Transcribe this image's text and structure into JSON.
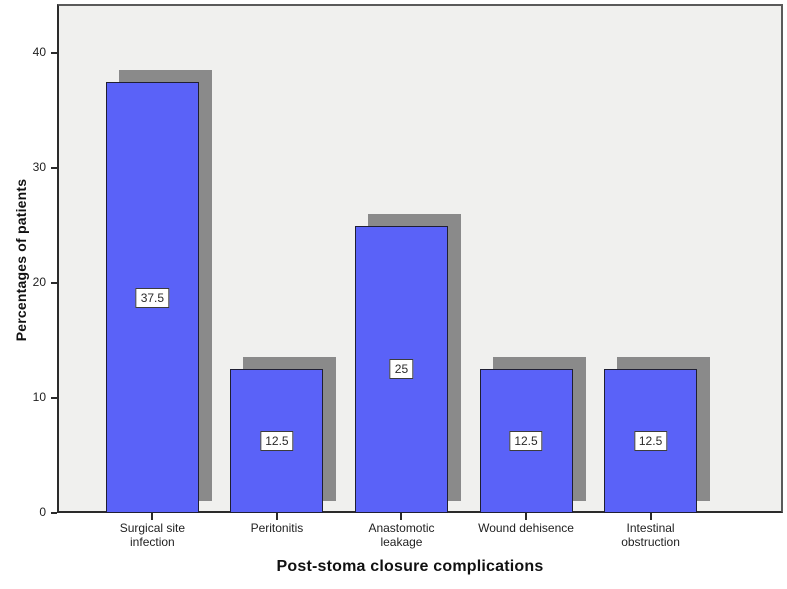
{
  "chart_data": {
    "type": "bar",
    "title": "",
    "xlabel": "Post-stoma closure complications",
    "ylabel": "Percentages of patients",
    "categories": [
      "Surgical site\ninfection",
      "Peritonitis",
      "Anastomotic\nleakage",
      "Wound dehisence",
      "Intestinal\nobstruction"
    ],
    "values": [
      37.5,
      12.5,
      25,
      12.5,
      12.5
    ],
    "bar_labels": [
      "37.5",
      "12.5",
      "25",
      "12.5",
      "12.5"
    ],
    "yticks": [
      0,
      10,
      20,
      30,
      40
    ],
    "ytick_labels": [
      "0",
      "10",
      "20",
      "30",
      "40"
    ],
    "ylim": [
      0,
      44.3
    ],
    "grid": false,
    "legend": null,
    "colors": {
      "bar_fill": "#5a62f8",
      "bar_border": "#1f1f33",
      "bar_shadow": "#8a8a8a",
      "plot_background": "#f0f0ee",
      "axis": "#2b2b2b",
      "label_box_background": "#ffffff"
    }
  }
}
